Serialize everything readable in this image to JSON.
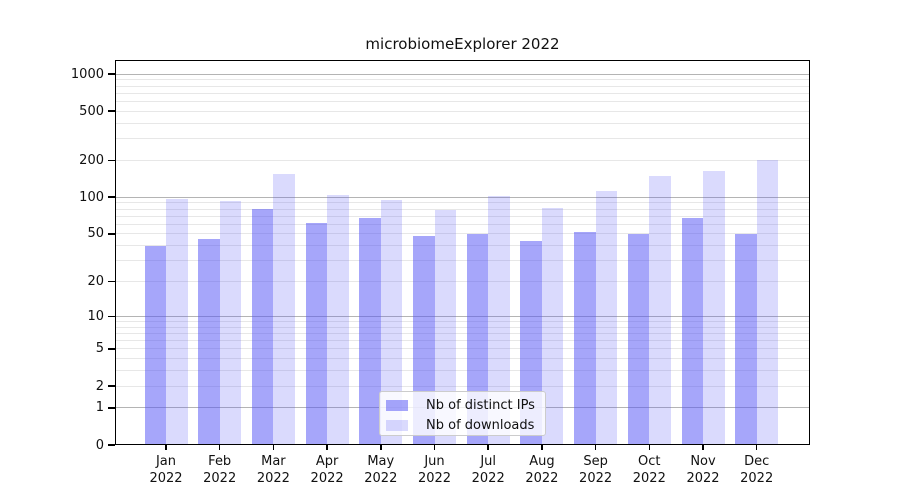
{
  "title": "microbiomeExplorer 2022",
  "colors": {
    "bar_distinct_ips": "rgba(85,85,245,0.52)",
    "bar_downloads": "rgba(85,85,245,0.22)",
    "grid_major": "#b4b4b4",
    "grid_minor": "#e7e7e7",
    "frame": "#000000",
    "background": "#ffffff"
  },
  "chart_data": {
    "type": "bar",
    "title": "microbiomeExplorer 2022",
    "categories": [
      "Jan 2022",
      "Feb 2022",
      "Mar 2022",
      "Apr 2022",
      "May 2022",
      "Jun 2022",
      "Jul 2022",
      "Aug 2022",
      "Sep 2022",
      "Oct 2022",
      "Nov 2022",
      "Dec 2022"
    ],
    "series": [
      {
        "name": "Nb of distinct IPs",
        "color_key": "bar_distinct_ips",
        "values": [
          40,
          45,
          80,
          61,
          67,
          48,
          50,
          44,
          52,
          50,
          67,
          50
        ]
      },
      {
        "name": "Nb of downloads",
        "color_key": "bar_downloads",
        "values": [
          96,
          93,
          156,
          104,
          95,
          78,
          102,
          82,
          112,
          150,
          165,
          200
        ]
      }
    ],
    "xlabel": "",
    "ylabel": "",
    "yscale": "log1p",
    "yticks": [
      0,
      1,
      2,
      5,
      10,
      20,
      50,
      100,
      200,
      500,
      1000
    ],
    "ylim": [
      0,
      1300
    ],
    "grid": true,
    "legend_position": "lower center"
  }
}
